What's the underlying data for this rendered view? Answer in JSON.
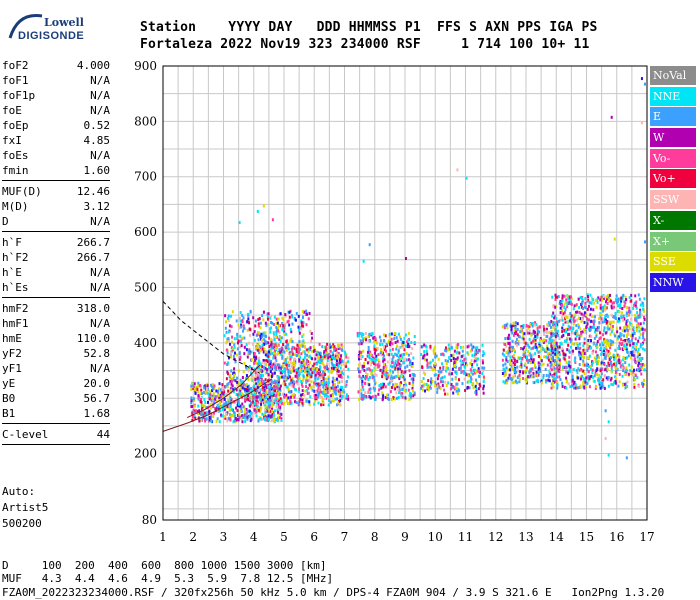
{
  "logo": {
    "line1": "Lowell",
    "line2": "DIGISONDE"
  },
  "header": {
    "row1": "Station    YYYY DAY   DDD HHMMSS P1  FFS S AXN PPS IGA PS",
    "row2": "Fortaleza 2022 Nov19 323 234000 RSF     1 714 100 10+ 11"
  },
  "params": [
    {
      "label": "foF2",
      "value": "4.000"
    },
    {
      "label": "foF1",
      "value": "N/A"
    },
    {
      "label": "foF1p",
      "value": "N/A"
    },
    {
      "label": "foE",
      "value": "N/A"
    },
    {
      "label": "foEp",
      "value": "0.52"
    },
    {
      "label": "fxI",
      "value": "4.85"
    },
    {
      "label": "foEs",
      "value": "N/A"
    },
    {
      "label": "fmin",
      "value": "1.60",
      "sep": true
    },
    {
      "label": "MUF(D)",
      "value": "12.46"
    },
    {
      "label": "M(D)",
      "value": "3.12"
    },
    {
      "label": "D",
      "value": "N/A",
      "sep": true
    },
    {
      "label": "h`F",
      "value": "266.7"
    },
    {
      "label": "h`F2",
      "value": "266.7"
    },
    {
      "label": "h`E",
      "value": "N/A"
    },
    {
      "label": "h`Es",
      "value": "N/A",
      "sep": true
    },
    {
      "label": "hmF2",
      "value": "318.0"
    },
    {
      "label": "hmF1",
      "value": "N/A"
    },
    {
      "label": "hmE",
      "value": "110.0"
    },
    {
      "label": "yF2",
      "value": "52.8"
    },
    {
      "label": "yF1",
      "value": "N/A"
    },
    {
      "label": "yE",
      "value": "20.0"
    },
    {
      "label": "B0",
      "value": "56.7"
    },
    {
      "label": "B1",
      "value": "1.68",
      "sep": true
    },
    {
      "label": "C-level",
      "value": "44",
      "sep": true
    }
  ],
  "auto": {
    "line1": "Auto:",
    "line2": "Artist5",
    "line3": "500200"
  },
  "legend": [
    {
      "label": "NoVal",
      "color": "#8c8c8c"
    },
    {
      "label": "NNE",
      "color": "#00e5f5"
    },
    {
      "label": "E",
      "color": "#3ca0ff"
    },
    {
      "label": "W",
      "color": "#b000b0"
    },
    {
      "label": "Vo-",
      "color": "#ff3c9c"
    },
    {
      "label": "Vo+",
      "color": "#f0003c"
    },
    {
      "label": "SSW",
      "color": "#ffb4b4"
    },
    {
      "label": "X-",
      "color": "#007800"
    },
    {
      "label": "X+",
      "color": "#78c878"
    },
    {
      "label": "SSE",
      "color": "#dcdc00"
    },
    {
      "label": "NNW",
      "color": "#2814e6"
    }
  ],
  "footer": {
    "d_row": "D     100  200  400  600  800 1000 1500 3000 [km]",
    "muf_row": "MUF   4.3  4.4  4.6  4.9  5.3  5.9  7.8 12.5 [MHz]",
    "file_row": "FZA0M_2022323234000.RSF / 320fx256h 50 kHz 5.0 km / DPS-4 FZA0M 904 / 3.9 S 321.6 E   Ion2Png 1.3.20"
  },
  "chart_data": {
    "type": "scatter",
    "xlim": [
      1,
      17
    ],
    "ylim": [
      80,
      900
    ],
    "x_ticks": [
      1,
      2,
      3,
      4,
      5,
      6,
      7,
      8,
      9,
      10,
      11,
      12,
      13,
      14,
      15,
      16,
      17
    ],
    "y_ticks": [
      80,
      200,
      300,
      400,
      500,
      600,
      700,
      800,
      900
    ],
    "grid": true,
    "clusters": [
      {
        "xmin": 1.9,
        "xmax": 4.9,
        "ymin": 260,
        "ymax": 330,
        "n": 700
      },
      {
        "xmin": 3.0,
        "xmax": 5.9,
        "ymin": 330,
        "ymax": 460,
        "n": 500
      },
      {
        "xmin": 4.0,
        "xmax": 6.9,
        "ymin": 290,
        "ymax": 400,
        "n": 600
      },
      {
        "xmin": 6.0,
        "xmax": 7.1,
        "ymin": 290,
        "ymax": 400,
        "n": 200
      },
      {
        "xmin": 7.4,
        "xmax": 9.3,
        "ymin": 300,
        "ymax": 420,
        "n": 450
      },
      {
        "xmin": 9.5,
        "xmax": 11.6,
        "ymin": 310,
        "ymax": 400,
        "n": 300
      },
      {
        "xmin": 12.2,
        "xmax": 14.0,
        "ymin": 330,
        "ymax": 440,
        "n": 450
      },
      {
        "xmin": 13.8,
        "xmax": 16.9,
        "ymin": 320,
        "ymax": 490,
        "n": 1100
      }
    ],
    "sparse": [
      {
        "x": 4.1,
        "y": 640
      },
      {
        "x": 4.3,
        "y": 650
      },
      {
        "x": 4.6,
        "y": 625
      },
      {
        "x": 3.5,
        "y": 620
      },
      {
        "x": 7.8,
        "y": 580
      },
      {
        "x": 11.0,
        "y": 700
      },
      {
        "x": 10.7,
        "y": 715
      },
      {
        "x": 9.0,
        "y": 555
      },
      {
        "x": 16.8,
        "y": 880
      },
      {
        "x": 16.9,
        "y": 870
      },
      {
        "x": 16.8,
        "y": 800
      },
      {
        "x": 15.8,
        "y": 810
      },
      {
        "x": 15.9,
        "y": 590
      },
      {
        "x": 16.9,
        "y": 585
      },
      {
        "x": 15.6,
        "y": 280
      },
      {
        "x": 15.7,
        "y": 260
      },
      {
        "x": 15.7,
        "y": 200
      },
      {
        "x": 16.3,
        "y": 195
      },
      {
        "x": 15.6,
        "y": 230
      },
      {
        "x": 7.6,
        "y": 550
      }
    ],
    "curves": [
      {
        "name": "dashed",
        "x": [
          1,
          1.6,
          2.3,
          3.0,
          3.7,
          4.2
        ],
        "y": [
          475,
          440,
          410,
          380,
          360,
          345
        ]
      },
      {
        "name": "trace1",
        "x": [
          1,
          1.8,
          2.5,
          3.2,
          3.9,
          4.6
        ],
        "y": [
          240,
          255,
          270,
          290,
          310,
          335
        ]
      },
      {
        "name": "trace2",
        "x": [
          1.8,
          2.4,
          3.0,
          3.6,
          4.2
        ],
        "y": [
          265,
          280,
          300,
          325,
          360
        ]
      }
    ]
  }
}
